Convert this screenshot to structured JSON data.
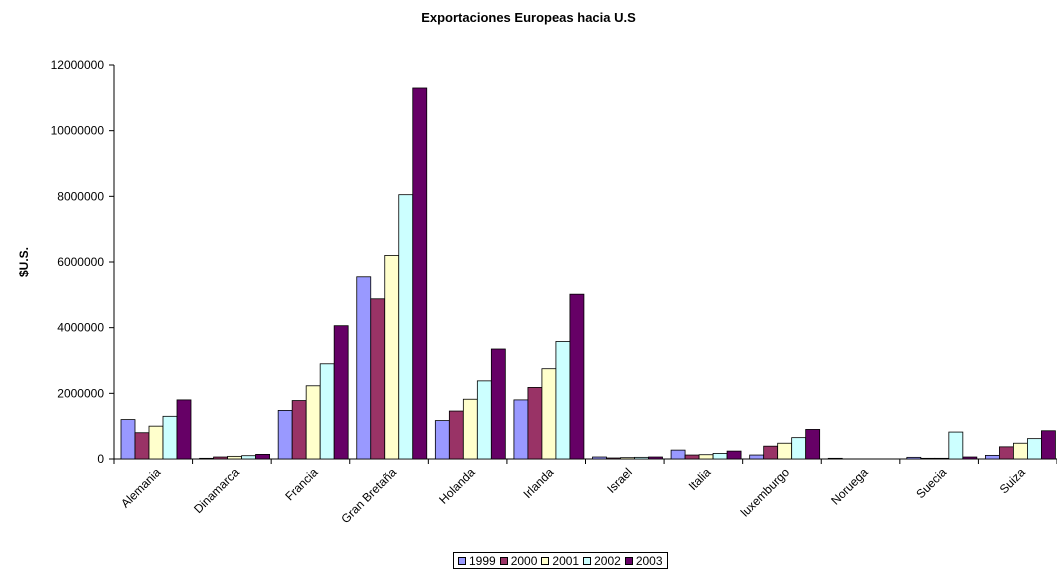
{
  "chart_data": {
    "type": "bar",
    "title": "Exportaciones Europeas hacia U.S",
    "xlabel": "",
    "ylabel": "$U.S.",
    "ylim": [
      0,
      12000000
    ],
    "yticks": [
      "0",
      "2000000",
      "4000000",
      "6000000",
      "8000000",
      "10000000",
      "12000000"
    ],
    "grid": false,
    "legend_position": "bottom",
    "categories": [
      "Alemania",
      "Dinamarca",
      "Francia",
      "Gran Bretaña",
      "Holanda",
      "Irlanda",
      "Israel",
      "Italia",
      "luxemburgo",
      "Noruega",
      "Suecia",
      "Suiza"
    ],
    "series": [
      {
        "name": "1999",
        "color": "#9999ff",
        "values": [
          1200000,
          20000,
          1480000,
          5550000,
          1170000,
          1800000,
          60000,
          270000,
          120000,
          20000,
          50000,
          110000
        ]
      },
      {
        "name": "2000",
        "color": "#993366",
        "values": [
          800000,
          60000,
          1780000,
          4880000,
          1460000,
          2180000,
          30000,
          120000,
          390000,
          0,
          20000,
          370000
        ]
      },
      {
        "name": "2001",
        "color": "#ffffcc",
        "values": [
          1000000,
          80000,
          2230000,
          6200000,
          1820000,
          2750000,
          40000,
          130000,
          480000,
          0,
          20000,
          480000
        ]
      },
      {
        "name": "2002",
        "color": "#ccffff",
        "values": [
          1300000,
          100000,
          2900000,
          8050000,
          2380000,
          3580000,
          50000,
          170000,
          650000,
          0,
          820000,
          620000
        ]
      },
      {
        "name": "2003",
        "color": "#660066",
        "values": [
          1800000,
          140000,
          4060000,
          11300000,
          3350000,
          5020000,
          60000,
          240000,
          900000,
          0,
          60000,
          860000
        ]
      }
    ]
  }
}
